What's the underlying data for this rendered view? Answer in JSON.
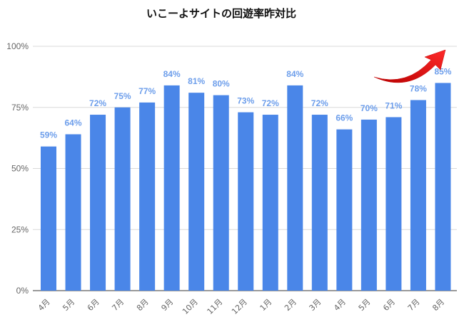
{
  "chart_data": {
    "type": "bar",
    "title": "いこーよサイトの回遊率昨対比",
    "xlabel": "",
    "ylabel": "",
    "categories": [
      "4月",
      "5月",
      "6月",
      "7月",
      "8月",
      "9月",
      "10月",
      "11月",
      "12月",
      "1月",
      "2月",
      "3月",
      "4月",
      "5月",
      "6月",
      "7月",
      "8月"
    ],
    "values": [
      59,
      64,
      72,
      75,
      77,
      84,
      81,
      80,
      73,
      72,
      84,
      72,
      66,
      70,
      71,
      78,
      85
    ],
    "data_labels": [
      "59%",
      "64%",
      "72%",
      "75%",
      "77%",
      "84%",
      "81%",
      "80%",
      "73%",
      "72%",
      "84%",
      "72%",
      "66%",
      "70%",
      "71%",
      "78%",
      "85%"
    ],
    "ylim": [
      0,
      100
    ],
    "y_ticks": [
      0,
      25,
      50,
      75,
      100
    ],
    "y_tick_labels": [
      "0%",
      "25%",
      "50%",
      "75%",
      "100%"
    ],
    "grid": true,
    "legend": "none",
    "annotation": "red-upward-arrow",
    "colors": {
      "bar": "#4a86e8",
      "label": "#6d9eeb",
      "arrow": "#e21818"
    }
  }
}
